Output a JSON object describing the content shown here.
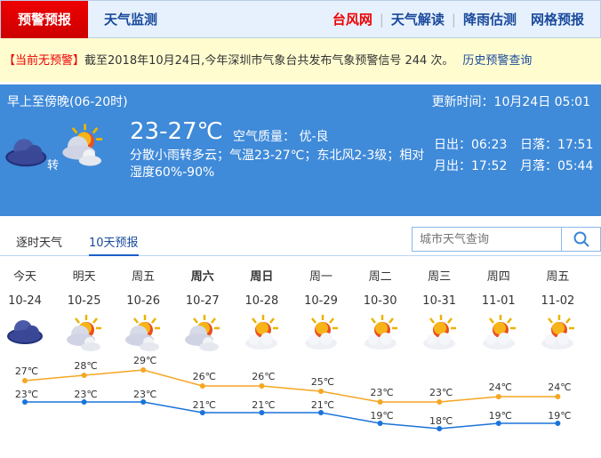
{
  "nav": {
    "active_tab": "预警预报",
    "tab2": "天气监测",
    "links": [
      {
        "label": "台风网",
        "color": "#e00000"
      },
      {
        "label": "天气解读"
      },
      {
        "label": "降雨估测"
      },
      {
        "label": "网格预报"
      }
    ]
  },
  "alert": {
    "status": "【当前无预警】",
    "text": "截至2018年10月24日,今年深圳市气象台共发布气象预警信号 244 次。",
    "history_link": "历史预警查询"
  },
  "today": {
    "period": "早上至傍晚(06-20时)",
    "update_time": "更新时间：10月24日 05:01",
    "temp": "23-27℃",
    "air_quality": "空气质量： 优-良",
    "desc": "分散小雨转多云；气温23-27℃；东北风2-3级；相对湿度60%-90%",
    "transition": "转",
    "icon_from": "dark-cloud",
    "icon_to": "partly-cloudy",
    "sunrise": "日出：06:23",
    "sunset": "日落：17:51",
    "moonrise": "月出：17:52",
    "moonset": "月落：05:44"
  },
  "tabs": {
    "hourly": "逐时天气",
    "ten_day": "10天预报",
    "active": "10天预报"
  },
  "search": {
    "placeholder": "城市天气查询"
  },
  "colors": {
    "high": "#f5a623",
    "low": "#1a73d9",
    "panel": "#3f8ad9"
  },
  "forecast": [
    {
      "day": "今天",
      "date": "10-24",
      "icon": "dark-cloud",
      "high": 27,
      "low": 23,
      "bold": false
    },
    {
      "day": "明天",
      "date": "10-25",
      "icon": "partly-cloudy",
      "high": 28,
      "low": 23,
      "bold": false
    },
    {
      "day": "周五",
      "date": "10-26",
      "icon": "partly-cloudy",
      "high": 29,
      "low": 23,
      "bold": false
    },
    {
      "day": "周六",
      "date": "10-27",
      "icon": "partly-cloudy",
      "high": 26,
      "low": 21,
      "bold": true
    },
    {
      "day": "周日",
      "date": "10-28",
      "icon": "sun-cloud",
      "high": 26,
      "low": 21,
      "bold": true
    },
    {
      "day": "周一",
      "date": "10-29",
      "icon": "sun-cloud",
      "high": 25,
      "low": 21,
      "bold": false
    },
    {
      "day": "周二",
      "date": "10-30",
      "icon": "sun-cloud",
      "high": 23,
      "low": 19,
      "bold": false
    },
    {
      "day": "周三",
      "date": "10-31",
      "icon": "sun-cloud",
      "high": 23,
      "low": 18,
      "bold": false
    },
    {
      "day": "周四",
      "date": "11-01",
      "icon": "sun-cloud",
      "high": 24,
      "low": 19,
      "bold": false
    },
    {
      "day": "周五",
      "date": "11-02",
      "icon": "sun-cloud",
      "high": 24,
      "low": 19,
      "bold": false
    }
  ],
  "unit": "℃"
}
